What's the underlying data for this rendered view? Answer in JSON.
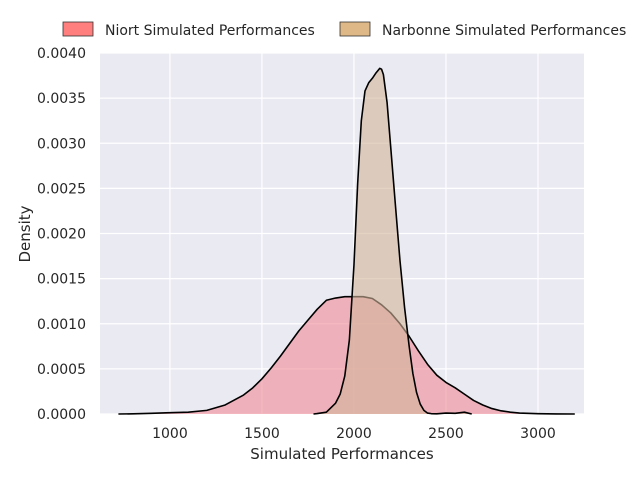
{
  "chart_data": {
    "type": "area",
    "xlabel": "Simulated Performances",
    "ylabel": "Density",
    "xlim": [
      620,
      3250
    ],
    "ylim": [
      0,
      0.004
    ],
    "xticks": [
      1000,
      1500,
      2000,
      2500,
      3000
    ],
    "yticks": [
      0.0,
      0.0005,
      0.001,
      0.0015,
      0.002,
      0.0025,
      0.003,
      0.0035,
      0.004
    ],
    "ytick_labels": [
      "0.0000",
      "0.0005",
      "0.0010",
      "0.0015",
      "0.0020",
      "0.0025",
      "0.0030",
      "0.0035",
      "0.0040"
    ],
    "grid": true,
    "legend_position": "top (above plot)",
    "colors": {
      "background": "#eaeaf2",
      "grid": "#ffffff",
      "niort_fill": "#f08a98",
      "narbonne_fill": "#d2b49a",
      "outline": "#000000"
    },
    "series": [
      {
        "name": "Niort Simulated Performances",
        "legend_color": "#ff7f7f",
        "x": [
          720,
          800,
          900,
          1000,
          1100,
          1200,
          1300,
          1400,
          1450,
          1500,
          1550,
          1600,
          1650,
          1700,
          1750,
          1800,
          1850,
          1900,
          1950,
          2000,
          2050,
          2100,
          2150,
          2200,
          2250,
          2300,
          2350,
          2400,
          2450,
          2500,
          2550,
          2600,
          2650,
          2700,
          2750,
          2800,
          2850,
          2900,
          3000,
          3100,
          3200
        ],
        "y": [
          0.0,
          2e-06,
          8e-06,
          1.5e-05,
          2e-05,
          4e-05,
          0.0001,
          0.00021,
          0.00029,
          0.00039,
          0.00051,
          0.00064,
          0.00078,
          0.00092,
          0.00104,
          0.00116,
          0.00126,
          0.001285,
          0.0013,
          0.0013,
          0.0013,
          0.00128,
          0.00121,
          0.00112,
          0.001,
          0.00086,
          0.0007,
          0.00055,
          0.00043,
          0.00035,
          0.00029,
          0.00022,
          0.00015,
          0.0001,
          6e-05,
          3.5e-05,
          2e-05,
          1e-05,
          4e-06,
          1e-06,
          0.0
        ]
      },
      {
        "name": "Narbonne Simulated Performances",
        "legend_color": "#deb887",
        "x": [
          1780,
          1800,
          1850,
          1900,
          1925,
          1950,
          1975,
          2000,
          2020,
          2040,
          2060,
          2080,
          2100,
          2120,
          2140,
          2150,
          2160,
          2180,
          2200,
          2225,
          2250,
          2275,
          2300,
          2320,
          2340,
          2360,
          2380,
          2400,
          2420,
          2450,
          2500,
          2550,
          2600,
          2640
        ],
        "y": [
          0.0,
          5e-06,
          2e-05,
          0.00012,
          0.00022,
          0.00042,
          0.00082,
          0.00165,
          0.00255,
          0.00325,
          0.00358,
          0.00367,
          0.00372,
          0.00378,
          0.00383,
          0.00382,
          0.00376,
          0.00345,
          0.00295,
          0.00232,
          0.0017,
          0.00118,
          0.00075,
          0.00045,
          0.00024,
          0.00011,
          4e-05,
          1e-05,
          4e-06,
          2e-06,
          1e-05,
          8e-06,
          2e-05,
          0.0
        ]
      }
    ]
  }
}
